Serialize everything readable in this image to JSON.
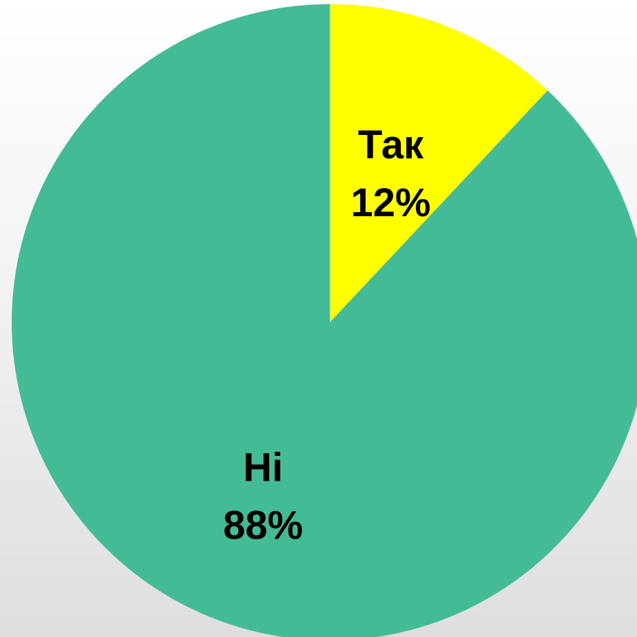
{
  "chart_data": {
    "type": "pie",
    "title": "",
    "start_angle_deg": 0,
    "direction": "clockwise",
    "slices": [
      {
        "label": "Так",
        "percent_label": "12%",
        "value": 12,
        "color": "#ffff00"
      },
      {
        "label": "Ні",
        "percent_label": "88%",
        "value": 88,
        "color": "#43bb96"
      }
    ]
  }
}
